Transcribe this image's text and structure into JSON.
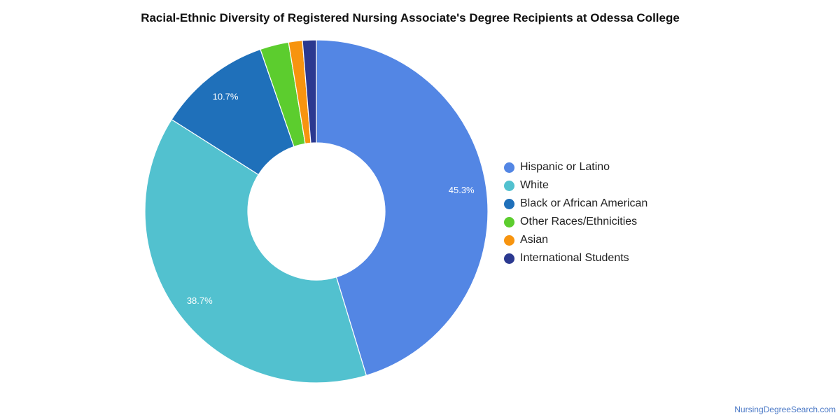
{
  "chart_data": {
    "type": "pie",
    "variant": "donut",
    "title": "Racial-Ethnic Diversity of Registered Nursing Associate's Degree Recipients at Odessa College",
    "legend_position": "right",
    "slices": [
      {
        "label": "Hispanic or Latino",
        "value": 45.3,
        "value_label": "45.3%",
        "color": "#5386e4"
      },
      {
        "label": "White",
        "value": 38.7,
        "value_label": "38.7%",
        "color": "#52c1cf"
      },
      {
        "label": "Black or African American",
        "value": 10.7,
        "value_label": "10.7%",
        "color": "#1f70ba"
      },
      {
        "label": "Other Races/Ethnicities",
        "value": 2.7,
        "value_label": "",
        "color": "#5ccd2e"
      },
      {
        "label": "Asian",
        "value": 1.3,
        "value_label": "",
        "color": "#f7940f"
      },
      {
        "label": "International Students",
        "value": 1.3,
        "value_label": "",
        "color": "#2b3990"
      }
    ]
  },
  "footer": {
    "source": "NursingDegreeSearch.com"
  }
}
